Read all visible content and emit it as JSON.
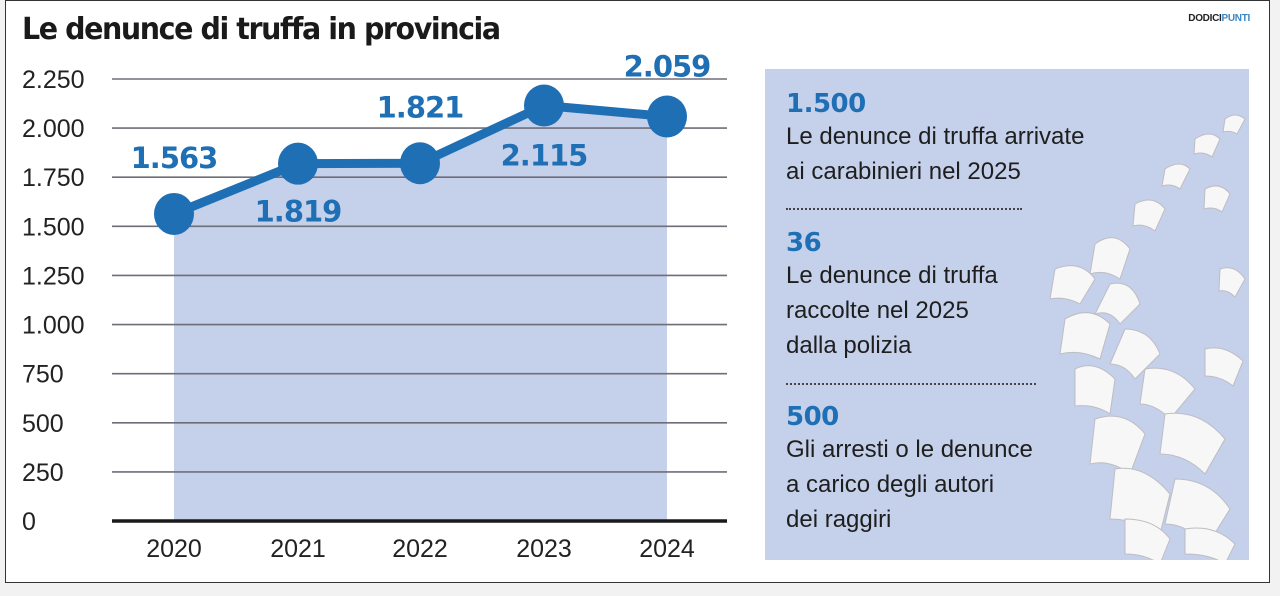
{
  "brand": {
    "part1": "DODICI",
    "part2": "PUNTI"
  },
  "chart_data": {
    "type": "area",
    "title": "Le denunce di truffa in provincia",
    "categories": [
      "2020",
      "2021",
      "2022",
      "2023",
      "2024"
    ],
    "values": [
      1563,
      1819,
      1821,
      2115,
      2059
    ],
    "data_labels": [
      "1.563",
      "1.819",
      "1.821",
      "2.115",
      "2.059"
    ],
    "ylim": [
      0,
      2250
    ],
    "yticks": [
      0,
      250,
      500,
      750,
      1000,
      1250,
      1500,
      1750,
      2000,
      2250
    ],
    "ytick_labels": [
      "0",
      "250",
      "500",
      "750",
      "1.000",
      "1.250",
      "1.500",
      "1.750",
      "2.000",
      "2.250"
    ],
    "xlabel": "",
    "ylabel": "",
    "grid": true,
    "line_color": "#1f6fb5",
    "fill_color": "#c5d0ea"
  },
  "panel": {
    "stats": [
      {
        "value": "1.500",
        "lines": [
          "Le denunce di truffa arrivate",
          "ai carabinieri nel 2025"
        ]
      },
      {
        "value": "36",
        "lines": [
          "Le denunce di truffa",
          "raccolte nel 2025",
          "dalla polizia"
        ]
      },
      {
        "value": "500",
        "lines": [
          "Gli arresti o le denunce",
          "a carico degli autori",
          "dei raggiri"
        ]
      }
    ]
  }
}
